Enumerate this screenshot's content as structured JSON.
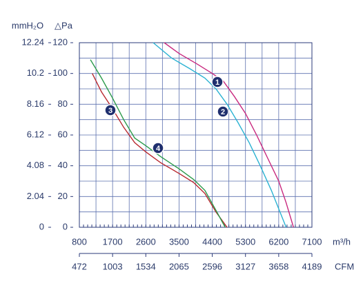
{
  "chart_data": {
    "type": "line",
    "y2_label": "mmH₂O",
    "y_label": "△Pa",
    "x_label": "m³/h",
    "x2_label": "CFM",
    "xlim": [
      800,
      7100
    ],
    "xticks": [
      800,
      1700,
      2600,
      3500,
      4400,
      5300,
      6200,
      7100
    ],
    "ylim": [
      0,
      120
    ],
    "yticks": [
      0,
      20,
      40,
      60,
      80,
      100,
      120
    ],
    "y2lim": [
      0,
      12.24
    ],
    "y2ticks": [
      0,
      2.04,
      4.08,
      6.12,
      8.16,
      10.2,
      12.24
    ],
    "x2lim": [
      472,
      4189
    ],
    "x2ticks": [
      472,
      1003,
      1534,
      2065,
      2596,
      3127,
      3658,
      4189
    ],
    "grid": true,
    "series": [
      {
        "name": "1",
        "color": "#c8287e",
        "x": [
          3100,
          3500,
          4000,
          4400,
          4700,
          5000,
          5300,
          5600,
          5900,
          6200,
          6400,
          6600
        ],
        "values": [
          120,
          113,
          106,
          100,
          95,
          85,
          74,
          60,
          45,
          30,
          16,
          0
        ]
      },
      {
        "name": "2",
        "color": "#2ab2d2",
        "x": [
          2800,
          3300,
          3800,
          4200,
          4500,
          4800,
          5100,
          5400,
          5700,
          6000,
          6200,
          6400
        ],
        "values": [
          120,
          110,
          103,
          97,
          90,
          80,
          68,
          55,
          40,
          24,
          12,
          0
        ]
      },
      {
        "name": "3",
        "color": "#b8282e",
        "x": [
          1150,
          1400,
          1700,
          2000,
          2300,
          2600,
          3000,
          3500,
          3900,
          4200,
          4500,
          4800
        ],
        "values": [
          100,
          88,
          77,
          65,
          55,
          49,
          42,
          35,
          29,
          22,
          10,
          0
        ]
      },
      {
        "name": "4",
        "color": "#2a9a4a",
        "x": [
          1100,
          1400,
          1700,
          2000,
          2300,
          2600,
          3000,
          3500,
          3900,
          4200,
          4500,
          4750
        ],
        "values": [
          109,
          97,
          84,
          70,
          58,
          53,
          46,
          38,
          31,
          24,
          11,
          0
        ]
      }
    ]
  }
}
